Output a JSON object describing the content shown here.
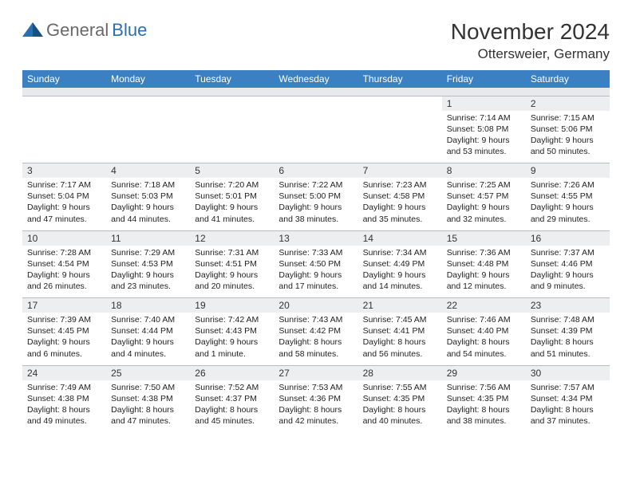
{
  "logo": {
    "text1": "General",
    "text2": "Blue"
  },
  "title": "November 2024",
  "location": "Ottersweier, Germany",
  "colors": {
    "header_bg": "#3a80c2",
    "header_text": "#ffffff",
    "daynum_bg": "#edeef0",
    "border": "#b8bcc2",
    "spacer_bg": "#e7e9ec",
    "body_text": "#222222",
    "logo_gray": "#6a6a6a",
    "logo_blue": "#2a6fb0"
  },
  "typography": {
    "title_fontsize": 28,
    "location_fontsize": 17,
    "header_fontsize": 12,
    "daynum_fontsize": 12,
    "cell_fontsize": 10.5
  },
  "day_headers": [
    "Sunday",
    "Monday",
    "Tuesday",
    "Wednesday",
    "Thursday",
    "Friday",
    "Saturday"
  ],
  "weeks": [
    [
      null,
      null,
      null,
      null,
      null,
      {
        "n": "1",
        "sr": "Sunrise: 7:14 AM",
        "ss": "Sunset: 5:08 PM",
        "dl": "Daylight: 9 hours and 53 minutes."
      },
      {
        "n": "2",
        "sr": "Sunrise: 7:15 AM",
        "ss": "Sunset: 5:06 PM",
        "dl": "Daylight: 9 hours and 50 minutes."
      }
    ],
    [
      {
        "n": "3",
        "sr": "Sunrise: 7:17 AM",
        "ss": "Sunset: 5:04 PM",
        "dl": "Daylight: 9 hours and 47 minutes."
      },
      {
        "n": "4",
        "sr": "Sunrise: 7:18 AM",
        "ss": "Sunset: 5:03 PM",
        "dl": "Daylight: 9 hours and 44 minutes."
      },
      {
        "n": "5",
        "sr": "Sunrise: 7:20 AM",
        "ss": "Sunset: 5:01 PM",
        "dl": "Daylight: 9 hours and 41 minutes."
      },
      {
        "n": "6",
        "sr": "Sunrise: 7:22 AM",
        "ss": "Sunset: 5:00 PM",
        "dl": "Daylight: 9 hours and 38 minutes."
      },
      {
        "n": "7",
        "sr": "Sunrise: 7:23 AM",
        "ss": "Sunset: 4:58 PM",
        "dl": "Daylight: 9 hours and 35 minutes."
      },
      {
        "n": "8",
        "sr": "Sunrise: 7:25 AM",
        "ss": "Sunset: 4:57 PM",
        "dl": "Daylight: 9 hours and 32 minutes."
      },
      {
        "n": "9",
        "sr": "Sunrise: 7:26 AM",
        "ss": "Sunset: 4:55 PM",
        "dl": "Daylight: 9 hours and 29 minutes."
      }
    ],
    [
      {
        "n": "10",
        "sr": "Sunrise: 7:28 AM",
        "ss": "Sunset: 4:54 PM",
        "dl": "Daylight: 9 hours and 26 minutes."
      },
      {
        "n": "11",
        "sr": "Sunrise: 7:29 AM",
        "ss": "Sunset: 4:53 PM",
        "dl": "Daylight: 9 hours and 23 minutes."
      },
      {
        "n": "12",
        "sr": "Sunrise: 7:31 AM",
        "ss": "Sunset: 4:51 PM",
        "dl": "Daylight: 9 hours and 20 minutes."
      },
      {
        "n": "13",
        "sr": "Sunrise: 7:33 AM",
        "ss": "Sunset: 4:50 PM",
        "dl": "Daylight: 9 hours and 17 minutes."
      },
      {
        "n": "14",
        "sr": "Sunrise: 7:34 AM",
        "ss": "Sunset: 4:49 PM",
        "dl": "Daylight: 9 hours and 14 minutes."
      },
      {
        "n": "15",
        "sr": "Sunrise: 7:36 AM",
        "ss": "Sunset: 4:48 PM",
        "dl": "Daylight: 9 hours and 12 minutes."
      },
      {
        "n": "16",
        "sr": "Sunrise: 7:37 AM",
        "ss": "Sunset: 4:46 PM",
        "dl": "Daylight: 9 hours and 9 minutes."
      }
    ],
    [
      {
        "n": "17",
        "sr": "Sunrise: 7:39 AM",
        "ss": "Sunset: 4:45 PM",
        "dl": "Daylight: 9 hours and 6 minutes."
      },
      {
        "n": "18",
        "sr": "Sunrise: 7:40 AM",
        "ss": "Sunset: 4:44 PM",
        "dl": "Daylight: 9 hours and 4 minutes."
      },
      {
        "n": "19",
        "sr": "Sunrise: 7:42 AM",
        "ss": "Sunset: 4:43 PM",
        "dl": "Daylight: 9 hours and 1 minute."
      },
      {
        "n": "20",
        "sr": "Sunrise: 7:43 AM",
        "ss": "Sunset: 4:42 PM",
        "dl": "Daylight: 8 hours and 58 minutes."
      },
      {
        "n": "21",
        "sr": "Sunrise: 7:45 AM",
        "ss": "Sunset: 4:41 PM",
        "dl": "Daylight: 8 hours and 56 minutes."
      },
      {
        "n": "22",
        "sr": "Sunrise: 7:46 AM",
        "ss": "Sunset: 4:40 PM",
        "dl": "Daylight: 8 hours and 54 minutes."
      },
      {
        "n": "23",
        "sr": "Sunrise: 7:48 AM",
        "ss": "Sunset: 4:39 PM",
        "dl": "Daylight: 8 hours and 51 minutes."
      }
    ],
    [
      {
        "n": "24",
        "sr": "Sunrise: 7:49 AM",
        "ss": "Sunset: 4:38 PM",
        "dl": "Daylight: 8 hours and 49 minutes."
      },
      {
        "n": "25",
        "sr": "Sunrise: 7:50 AM",
        "ss": "Sunset: 4:38 PM",
        "dl": "Daylight: 8 hours and 47 minutes."
      },
      {
        "n": "26",
        "sr": "Sunrise: 7:52 AM",
        "ss": "Sunset: 4:37 PM",
        "dl": "Daylight: 8 hours and 45 minutes."
      },
      {
        "n": "27",
        "sr": "Sunrise: 7:53 AM",
        "ss": "Sunset: 4:36 PM",
        "dl": "Daylight: 8 hours and 42 minutes."
      },
      {
        "n": "28",
        "sr": "Sunrise: 7:55 AM",
        "ss": "Sunset: 4:35 PM",
        "dl": "Daylight: 8 hours and 40 minutes."
      },
      {
        "n": "29",
        "sr": "Sunrise: 7:56 AM",
        "ss": "Sunset: 4:35 PM",
        "dl": "Daylight: 8 hours and 38 minutes."
      },
      {
        "n": "30",
        "sr": "Sunrise: 7:57 AM",
        "ss": "Sunset: 4:34 PM",
        "dl": "Daylight: 8 hours and 37 minutes."
      }
    ]
  ]
}
